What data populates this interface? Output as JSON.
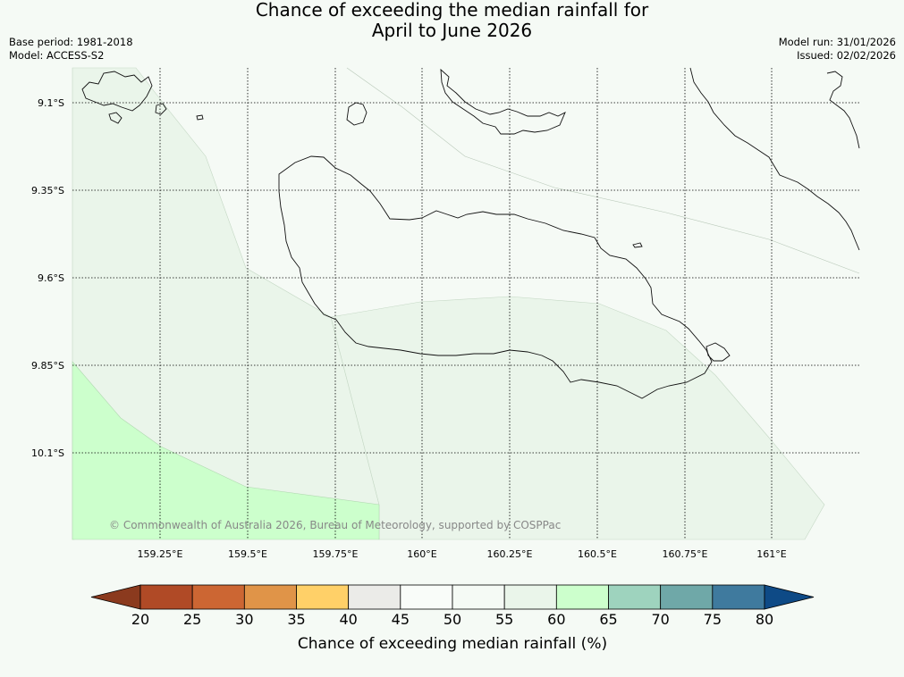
{
  "title": {
    "line1": "Chance of exceeding the median rainfall for",
    "line2": "April to June 2026"
  },
  "meta": {
    "base_period": "Base period: 1981-2018",
    "model": "Model: ACCESS-S2",
    "model_run": "Model run: 31/01/2026",
    "issued": "Issued: 02/02/2026"
  },
  "map": {
    "lat_labels": [
      "9.1°S",
      "9.35°S",
      "9.6°S",
      "9.85°S",
      "10.1°S"
    ],
    "lon_labels": [
      "159.25°E",
      "159.5°E",
      "159.75°E",
      "160°E",
      "160.25°E",
      "160.5°E",
      "160.75°E",
      "161°E"
    ],
    "copyright": "© Commonwealth of Australia 2026, Bureau of Meteorology, supported by COSPPac",
    "colors": {
      "background": "#f5faf5",
      "band_55_60": "#eaf5ea",
      "band_60_65": "#ccffcc",
      "coast": "#000000",
      "grid": "#000000"
    }
  },
  "colorbar": {
    "title": "Chance of exceeding median rainfall (%)",
    "ticks": [
      "20",
      "25",
      "30",
      "35",
      "40",
      "45",
      "50",
      "55",
      "60",
      "65",
      "70",
      "75",
      "80"
    ],
    "under_color": "#8b3a1e",
    "over_color": "#0e4a86",
    "colors": [
      "#b04a26",
      "#cc6633",
      "#e09448",
      "#ffd068",
      "#ebebe8",
      "#f9fcf9",
      "#f5faf5",
      "#eaf5ea",
      "#ccffcc",
      "#9ed3be",
      "#6fa8a8",
      "#3f7a9e"
    ]
  }
}
